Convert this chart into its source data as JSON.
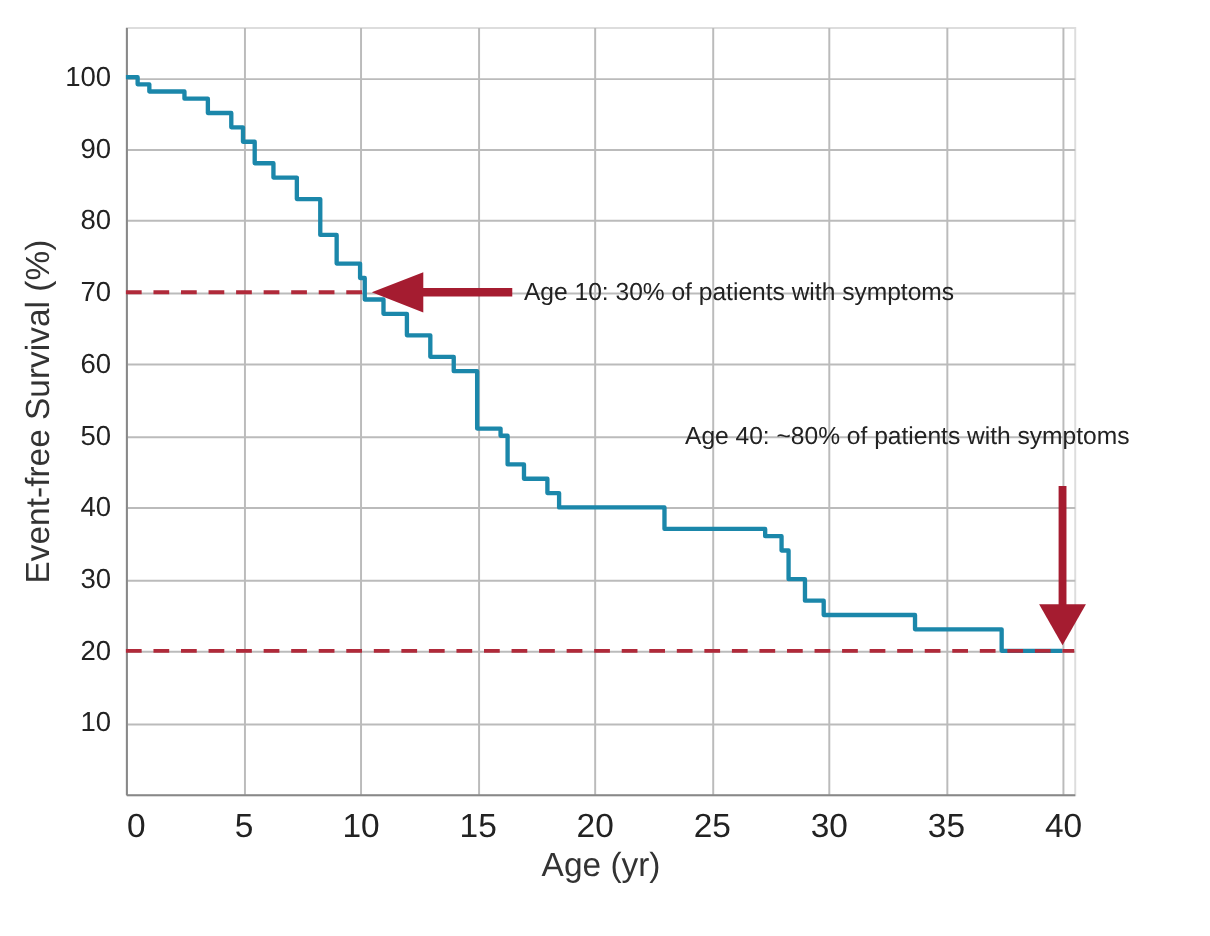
{
  "chart_data": {
    "type": "step",
    "xlabel": "Age (yr)",
    "ylabel": "Event-free Survival (%)",
    "x": [
      0,
      0.5,
      1,
      2.5,
      3.5,
      4.5,
      5,
      5.5,
      6.3,
      7.3,
      8.3,
      9,
      10,
      10.2,
      11,
      12,
      13,
      14,
      15,
      16,
      16.3,
      17,
      18,
      18.5,
      23,
      27,
      27.3,
      28,
      28.3,
      29,
      29.8,
      33.7,
      37.4,
      40
    ],
    "series": [
      {
        "color": "#1b87aa",
        "values": [
          100,
          99,
          98,
          97,
          95,
          93,
          91,
          88,
          86,
          83,
          78,
          74,
          72,
          69,
          67,
          64,
          61,
          59,
          51,
          50,
          46,
          44,
          42,
          40,
          37,
          37,
          36,
          34,
          30,
          27,
          25,
          23,
          20,
          20
        ]
      }
    ],
    "xlim": [
      0,
      40.5
    ],
    "xticks": [
      0,
      5,
      10,
      15,
      20,
      25,
      30,
      35,
      40
    ],
    "ylim": [
      0,
      107
    ],
    "yticks": [
      10,
      20,
      30,
      40,
      50,
      60,
      70,
      80,
      90,
      100
    ],
    "grid": true,
    "ref_lines": [
      {
        "axis": "y",
        "value": 70,
        "color": "#b02a3a",
        "line_style": "dashed"
      },
      {
        "axis": "y",
        "value": 20,
        "color": "#b02a3a",
        "line_style": "dashed"
      }
    ],
    "annotations": [
      "Age 10: 30% of patients with symptoms",
      "Age 40: ~80% of patients with symptoms"
    ]
  }
}
